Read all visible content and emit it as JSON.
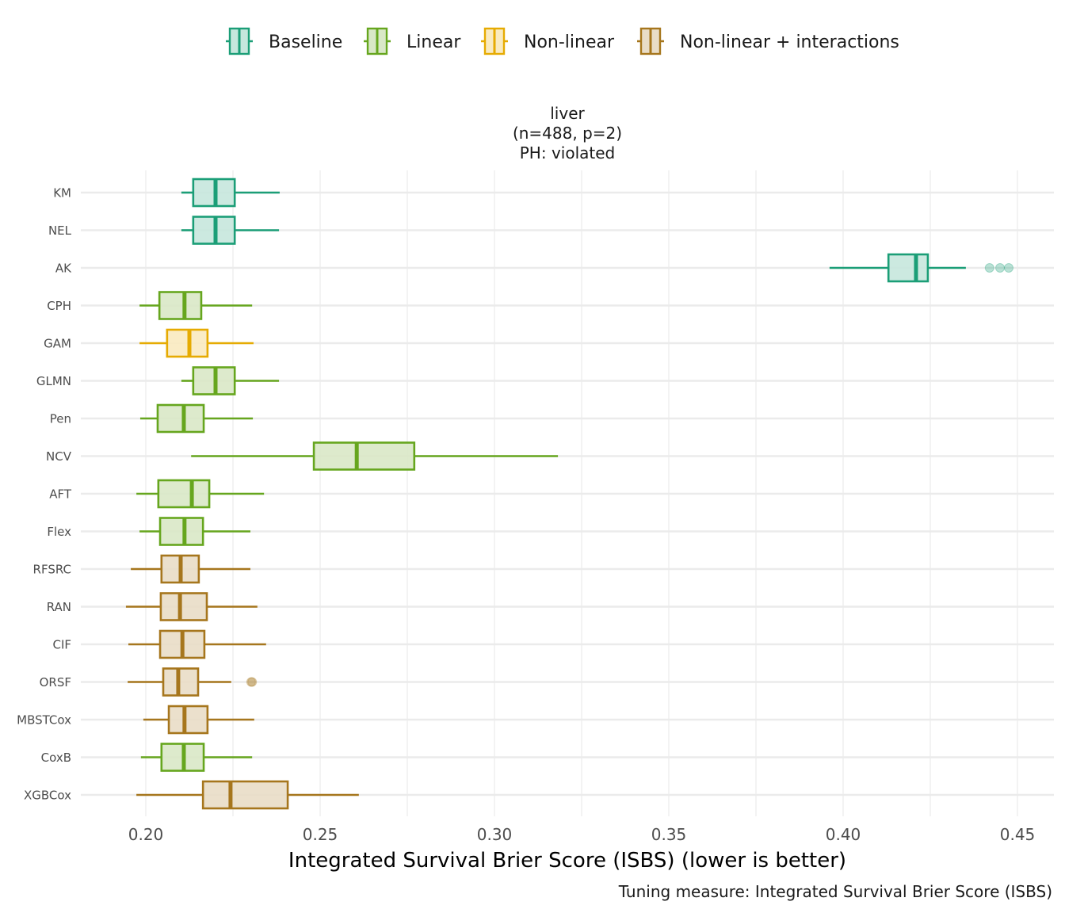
{
  "chart_data": {
    "type": "boxplot",
    "orientation": "horizontal",
    "facet_title": [
      "liver",
      "(n=488, p=2)",
      "PH: violated"
    ],
    "xlabel": "Integrated Survival Brier Score (ISBS) (lower is better)",
    "caption": "Tuning measure: Integrated Survival Brier Score (ISBS)",
    "xlim": [
      0.18,
      0.46
    ],
    "x_ticks": [
      0.2,
      0.25,
      0.3,
      0.35,
      0.4,
      0.45
    ],
    "x_tick_labels": [
      "0.20",
      "0.25",
      "0.30",
      "0.35",
      "0.40",
      "0.45"
    ],
    "legend_position": "top",
    "legend": [
      {
        "name": "Baseline",
        "color": "#1B9E77",
        "fill": "#C6E7DD"
      },
      {
        "name": "Linear",
        "color": "#66A61E",
        "fill": "#D9E8C7"
      },
      {
        "name": "Non-linear",
        "color": "#E6AB02",
        "fill": "#F9EAC0"
      },
      {
        "name": "Non-linear + interactions",
        "color": "#A6761D",
        "fill": "#E9DDC7"
      }
    ],
    "series": [
      {
        "name": "KM",
        "group": "Baseline",
        "min": 0.2102,
        "q1": 0.2136,
        "median": 0.22,
        "q3": 0.2255,
        "max": 0.2384,
        "outliers": []
      },
      {
        "name": "NEL",
        "group": "Baseline",
        "min": 0.2102,
        "q1": 0.2136,
        "median": 0.22,
        "q3": 0.2255,
        "max": 0.2382,
        "outliers": []
      },
      {
        "name": "AK",
        "group": "Baseline",
        "min": 0.3961,
        "q1": 0.413,
        "median": 0.4209,
        "q3": 0.4243,
        "max": 0.4352,
        "outliers": [
          0.442,
          0.445,
          0.4475
        ]
      },
      {
        "name": "CPH",
        "group": "Linear",
        "min": 0.1982,
        "q1": 0.2039,
        "median": 0.2111,
        "q3": 0.2159,
        "max": 0.2305,
        "outliers": []
      },
      {
        "name": "GAM",
        "group": "Non-linear",
        "min": 0.1982,
        "q1": 0.2061,
        "median": 0.2125,
        "q3": 0.2177,
        "max": 0.2309,
        "outliers": []
      },
      {
        "name": "GLMN",
        "group": "Linear",
        "min": 0.2102,
        "q1": 0.2136,
        "median": 0.22,
        "q3": 0.2255,
        "max": 0.2382,
        "outliers": []
      },
      {
        "name": "Pen",
        "group": "Linear",
        "min": 0.1984,
        "q1": 0.2034,
        "median": 0.2109,
        "q3": 0.2166,
        "max": 0.2307,
        "outliers": []
      },
      {
        "name": "NCV",
        "group": "Linear",
        "min": 0.213,
        "q1": 0.2482,
        "median": 0.2605,
        "q3": 0.277,
        "max": 0.3182,
        "outliers": []
      },
      {
        "name": "AFT",
        "group": "Linear",
        "min": 0.1973,
        "q1": 0.2036,
        "median": 0.2132,
        "q3": 0.2182,
        "max": 0.2339,
        "outliers": []
      },
      {
        "name": "Flex",
        "group": "Linear",
        "min": 0.1982,
        "q1": 0.2041,
        "median": 0.2111,
        "q3": 0.2164,
        "max": 0.23,
        "outliers": []
      },
      {
        "name": "RFSRC",
        "group": "Non-linear + interactions",
        "min": 0.1957,
        "q1": 0.2045,
        "median": 0.21,
        "q3": 0.2152,
        "max": 0.23,
        "outliers": []
      },
      {
        "name": "RAN",
        "group": "Non-linear + interactions",
        "min": 0.1943,
        "q1": 0.2043,
        "median": 0.2098,
        "q3": 0.2175,
        "max": 0.232,
        "outliers": []
      },
      {
        "name": "CIF",
        "group": "Non-linear + interactions",
        "min": 0.195,
        "q1": 0.2041,
        "median": 0.2105,
        "q3": 0.2168,
        "max": 0.2345,
        "outliers": []
      },
      {
        "name": "ORSF",
        "group": "Non-linear + interactions",
        "min": 0.1948,
        "q1": 0.205,
        "median": 0.2093,
        "q3": 0.215,
        "max": 0.2245,
        "outliers": [
          0.2302,
          0.2305
        ]
      },
      {
        "name": "MBSTCox",
        "group": "Non-linear + interactions",
        "min": 0.1993,
        "q1": 0.2066,
        "median": 0.2111,
        "q3": 0.2177,
        "max": 0.2311,
        "outliers": []
      },
      {
        "name": "CoxB",
        "group": "Linear",
        "min": 0.1986,
        "q1": 0.2045,
        "median": 0.2109,
        "q3": 0.2166,
        "max": 0.2305,
        "outliers": []
      },
      {
        "name": "XGBCox",
        "group": "Non-linear + interactions",
        "min": 0.1973,
        "q1": 0.2164,
        "median": 0.2243,
        "q3": 0.2407,
        "max": 0.2611,
        "outliers": []
      }
    ]
  }
}
